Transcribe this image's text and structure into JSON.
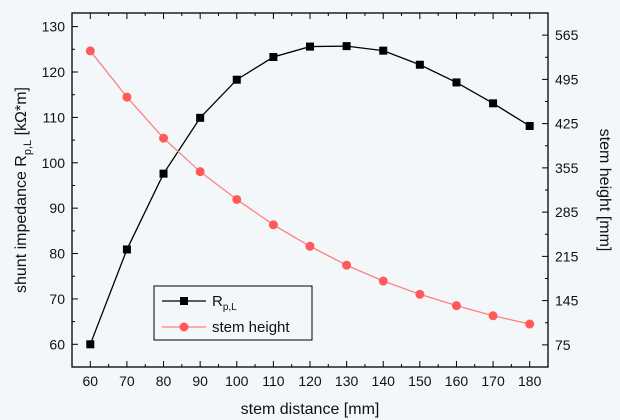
{
  "chart_data": {
    "type": "line",
    "xlabel": "stem distance [mm]",
    "ylabel_left": {
      "main": "shunt impedance R",
      "sub": "p,L",
      "unit": " [kΩ*m]"
    },
    "ylabel_right": "stem height [mm]",
    "x": [
      60,
      70,
      80,
      90,
      100,
      110,
      120,
      130,
      140,
      150,
      160,
      170,
      180
    ],
    "xlim": [
      55,
      185
    ],
    "xticks": [
      "60",
      "70",
      "80",
      "90",
      "100",
      "110",
      "120",
      "130",
      "140",
      "150",
      "160",
      "170",
      "180"
    ],
    "ylim_left": [
      55,
      133
    ],
    "yticks_left": [
      "60",
      "70",
      "80",
      "90",
      "100",
      "110",
      "120",
      "130"
    ],
    "ylim_right": [
      40,
      600
    ],
    "yticks_right": [
      "75",
      "145",
      "215",
      "285",
      "355",
      "425",
      "495",
      "565"
    ],
    "grid": false,
    "legend_position": "bottom-left",
    "series": [
      {
        "name": "R",
        "name_sub": "p,L",
        "axis": "left",
        "marker": "square",
        "color": "#000000",
        "values": [
          60.0,
          80.9,
          97.6,
          109.9,
          118.3,
          123.3,
          125.6,
          125.7,
          124.7,
          121.6,
          117.7,
          113.1,
          108.1
        ]
      },
      {
        "name": "stem height",
        "axis": "right",
        "marker": "circle",
        "color": "#ff5a5a",
        "line_color": "#ff8080",
        "values": [
          540,
          467,
          402,
          349,
          305,
          265,
          231,
          201,
          176,
          155,
          137,
          121,
          108
        ]
      }
    ]
  }
}
